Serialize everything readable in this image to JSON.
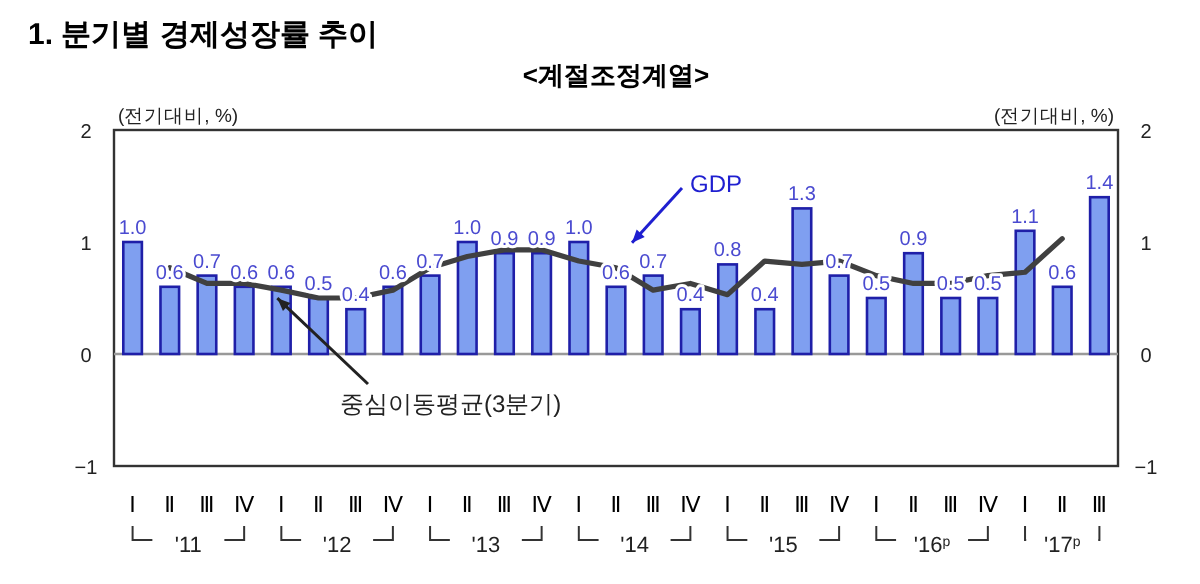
{
  "chart_data": {
    "type": "bar",
    "title": "1. 분기별 경제성장률 추이",
    "subtitle": "<계절조정계열>",
    "ylabel": "(전기대비, %)",
    "y2label": "(전기대비, %)",
    "categories": [
      "Ⅰ",
      "Ⅱ",
      "Ⅲ",
      "Ⅳ",
      "Ⅰ",
      "Ⅱ",
      "Ⅲ",
      "Ⅳ",
      "Ⅰ",
      "Ⅱ",
      "Ⅲ",
      "Ⅳ",
      "Ⅰ",
      "Ⅱ",
      "Ⅲ",
      "Ⅳ",
      "Ⅰ",
      "Ⅱ",
      "Ⅲ",
      "Ⅳ",
      "Ⅰ",
      "Ⅱ",
      "Ⅲ",
      "Ⅳ",
      "Ⅰ",
      "Ⅱ",
      "Ⅲ"
    ],
    "series": [
      {
        "name": "GDP",
        "color": "#7f9ff0",
        "values": [
          1.0,
          0.6,
          0.7,
          0.6,
          0.6,
          0.5,
          0.4,
          0.6,
          0.7,
          1.0,
          0.9,
          0.9,
          1.0,
          0.6,
          0.7,
          0.4,
          0.8,
          0.4,
          1.3,
          0.7,
          0.5,
          0.9,
          0.5,
          0.5,
          1.1,
          0.6,
          1.4
        ],
        "value_labels": [
          "1.0",
          "0.6",
          "0.7",
          "0.6",
          "0.6",
          "0.5",
          "0.4",
          "0.6",
          "0.7",
          "1.0",
          "0.9",
          "0.9",
          "1.0",
          "0.6",
          "0.7",
          "0.4",
          "0.8",
          "0.4",
          "1.3",
          "0.7",
          "0.5",
          "0.9",
          "0.5",
          "0.5",
          "1.1",
          "0.6",
          "1.4"
        ]
      },
      {
        "name": "중심이동평균(3분기)",
        "type": "line",
        "color": "#404040",
        "values": [
          null,
          0.77,
          0.63,
          0.63,
          0.57,
          0.5,
          0.5,
          0.57,
          0.77,
          0.87,
          0.93,
          0.93,
          0.83,
          0.77,
          0.57,
          0.63,
          0.53,
          0.83,
          0.8,
          0.83,
          0.7,
          0.63,
          0.63,
          0.7,
          0.73,
          1.03,
          null
        ]
      }
    ],
    "ylim": [
      -1,
      2
    ],
    "yticks": [
      {
        "value": -1,
        "label": "−1"
      },
      0,
      1,
      2
    ],
    "y2lim": [
      -1,
      2
    ],
    "y2ticks": [
      {
        "value": -1,
        "label": "−1"
      },
      0,
      1,
      2
    ],
    "ref_lines": [
      {
        "axis": "y",
        "value": 0,
        "color": "#999999"
      }
    ],
    "annotations": [
      "'11",
      "'12",
      "'13",
      "'14",
      "'15",
      "'16$^{p}$",
      "'17$^{p}$"
    ],
    "grid": false
  }
}
